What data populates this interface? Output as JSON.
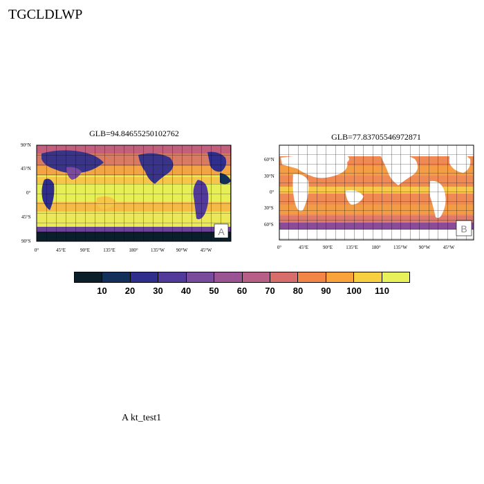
{
  "title": "TGCLDLWP",
  "footer": "A  kt_test1",
  "panels": [
    {
      "id": "A",
      "title": "GLB=94.84655250102762",
      "label": "A",
      "lat_ticks": [
        "90°N",
        "45°N",
        "0°",
        "45°S",
        "90°S"
      ],
      "lon_ticks": [
        "0°",
        "45°E",
        "90°E",
        "135°E",
        "180°",
        "135°W",
        "90°W",
        "45°W"
      ]
    },
    {
      "id": "B",
      "title": "GLB=77.83705546972871",
      "label": "B",
      "lat_ticks": [
        "60°N",
        "30°N",
        "0°",
        "30°S",
        "60°S"
      ],
      "lon_ticks": [
        "0°",
        "45°E",
        "90°E",
        "135°E",
        "180°",
        "135°W",
        "90°W",
        "45°W"
      ]
    }
  ],
  "colorbar": {
    "labels": [
      "10",
      "20",
      "30",
      "40",
      "50",
      "60",
      "70",
      "80",
      "90",
      "100",
      "110"
    ],
    "colors": [
      "#0b1f2b",
      "#13305a",
      "#2f2e8c",
      "#523a9a",
      "#7a4a9c",
      "#9a5493",
      "#b75f86",
      "#d86e6c",
      "#f38647",
      "#f9a33a",
      "#f7d042",
      "#e8f05a"
    ]
  }
}
